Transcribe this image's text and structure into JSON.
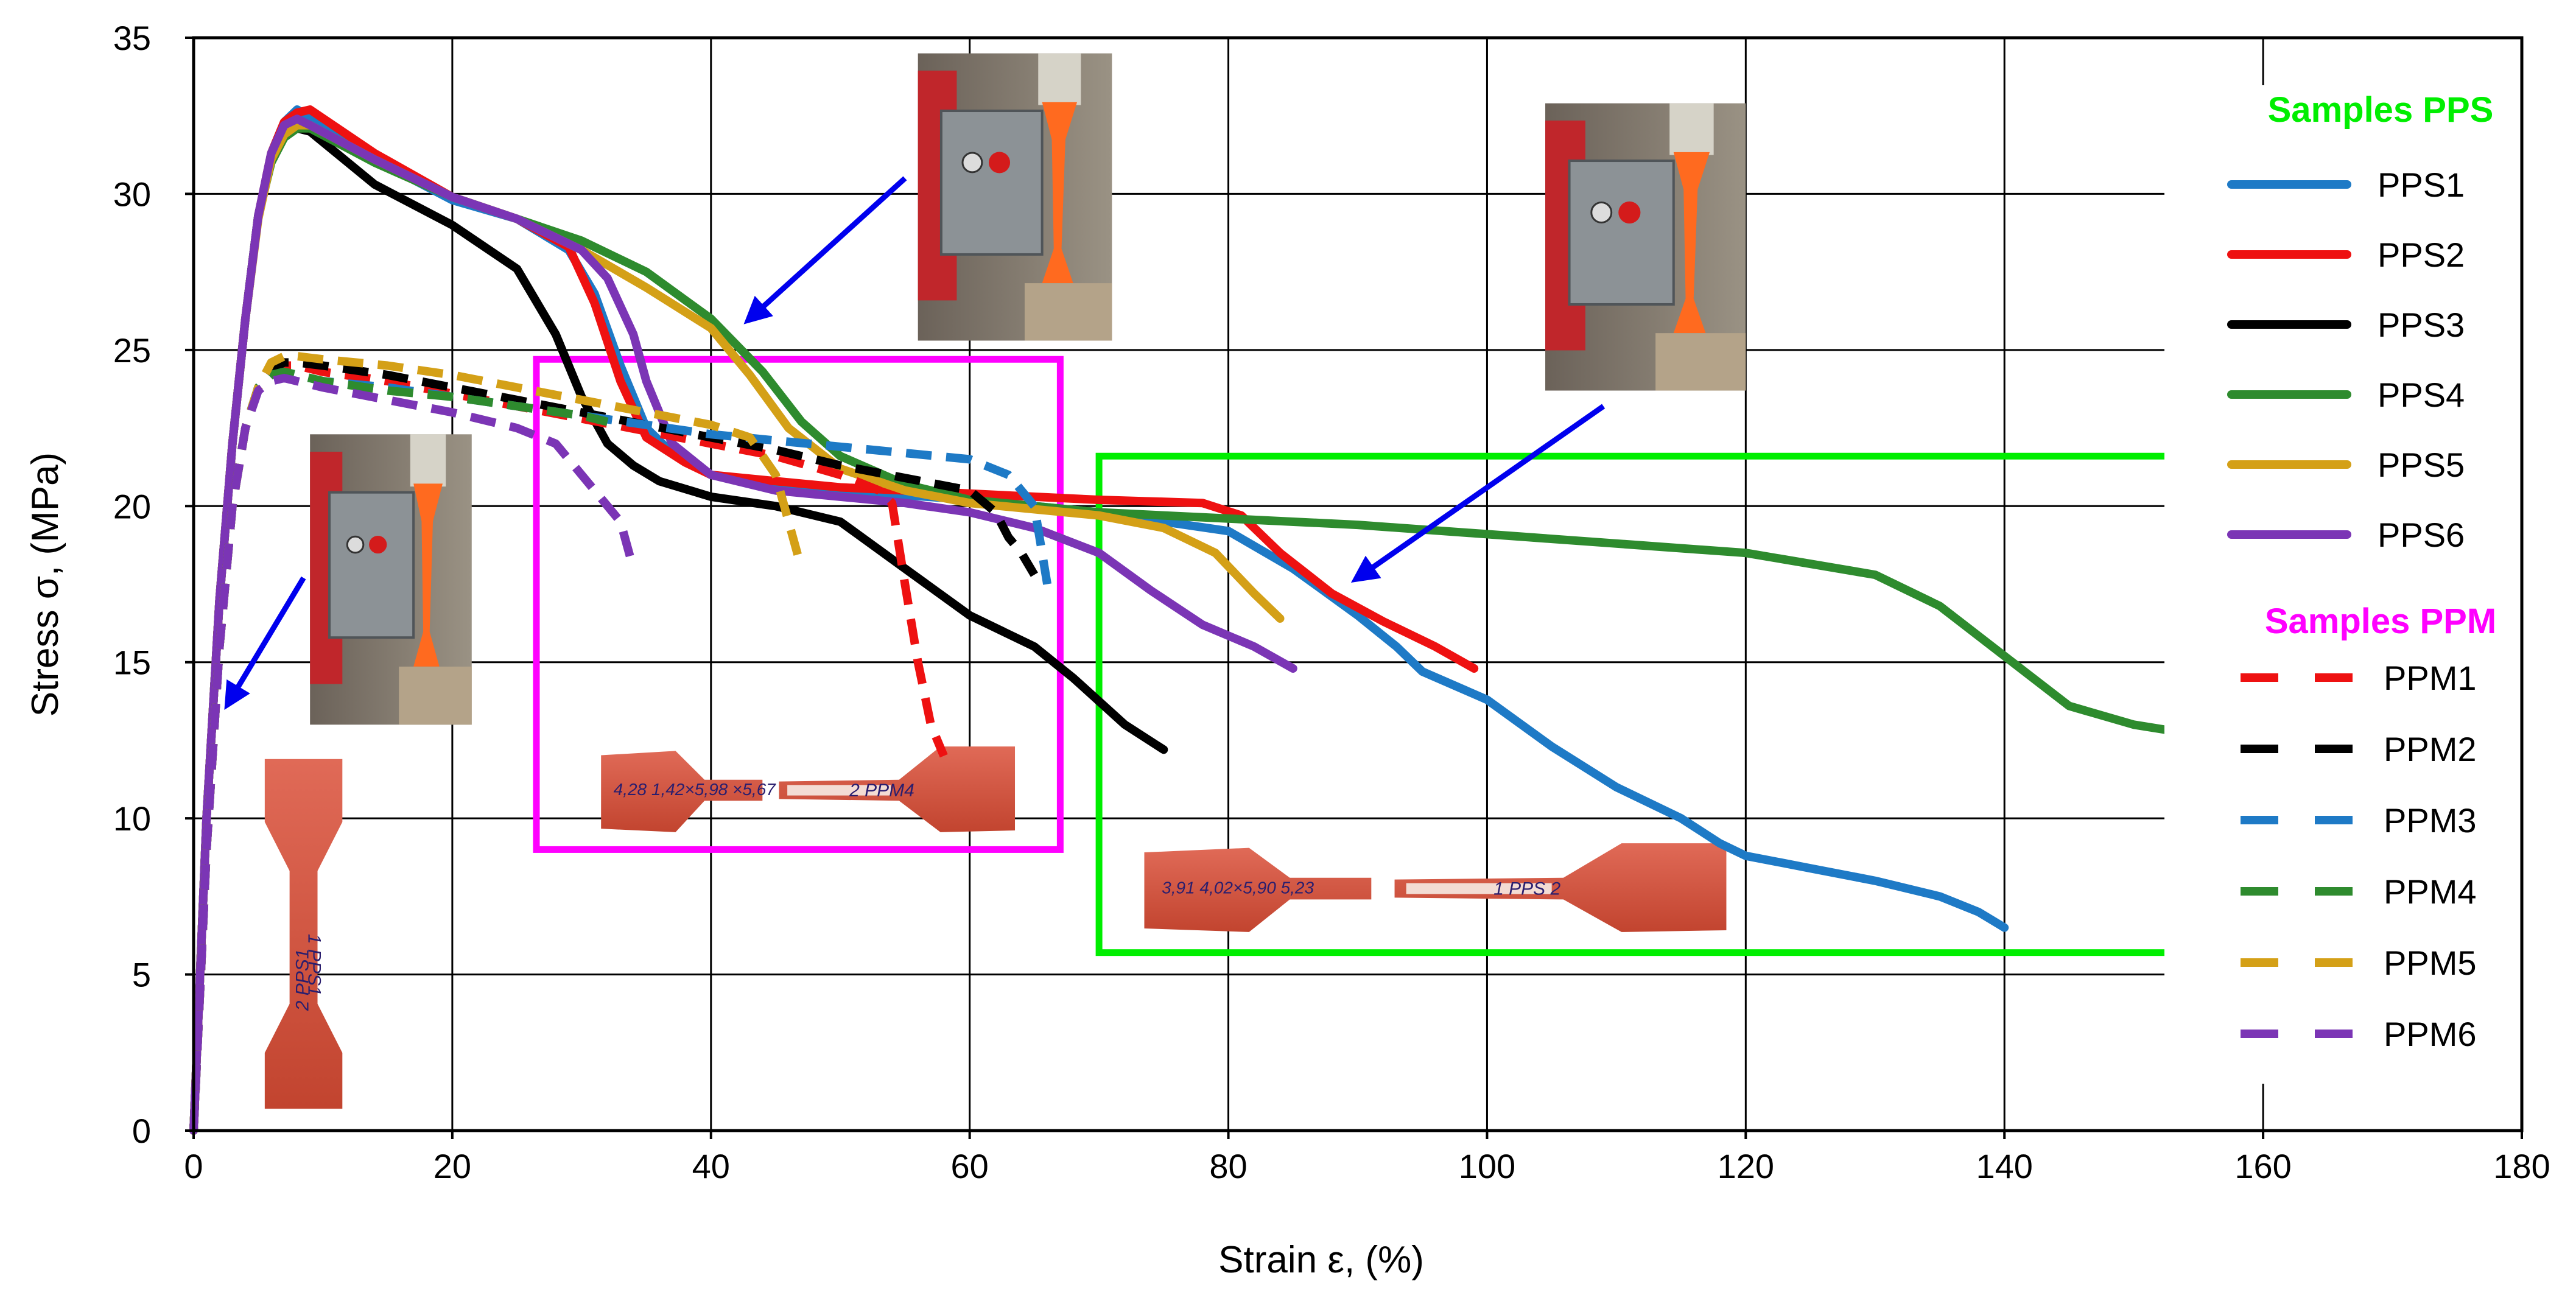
{
  "chart_data": {
    "type": "line",
    "title": "",
    "xlabel": "Strain ε, (%)",
    "ylabel": "Stress σ, (MPa)",
    "xlim": [
      0,
      180
    ],
    "ylim": [
      0,
      35
    ],
    "xticks": [
      "0",
      "20",
      "40",
      "60",
      "80",
      "100",
      "120",
      "140",
      "160",
      "180"
    ],
    "yticks": [
      "0",
      "5",
      "10",
      "15",
      "20",
      "25",
      "30",
      "35"
    ],
    "grid": true,
    "legend_placement": "right",
    "legend_groups": [
      {
        "title": "Samples PPS",
        "color": "#00ee00"
      },
      {
        "title": "Samples PPM",
        "color": "#ff00ff"
      }
    ],
    "series": [
      {
        "name": "PPS1",
        "group": "PPS",
        "style": "solid",
        "color": "#1e7ac6",
        "x": [
          0,
          1,
          2,
          3,
          4,
          5,
          6,
          7,
          8,
          10,
          14,
          20,
          25,
          29,
          31,
          33,
          35,
          37,
          40,
          50,
          60,
          70,
          80,
          85,
          90,
          93,
          95,
          100,
          105,
          110,
          115,
          118,
          120,
          125,
          130,
          135,
          138,
          140
        ],
        "y": [
          0,
          10,
          17,
          22,
          26,
          29.3,
          31.3,
          32.3,
          32.7,
          32.2,
          31.1,
          29.8,
          29.2,
          28.2,
          26.8,
          24.5,
          22.5,
          21.7,
          21,
          20.5,
          20.2,
          19.8,
          19.2,
          18,
          16.5,
          15.5,
          14.7,
          13.8,
          12.3,
          11,
          10,
          9.2,
          8.8,
          8.4,
          8,
          7.5,
          7,
          6.5
        ]
      },
      {
        "name": "PPS2",
        "group": "PPS",
        "style": "solid",
        "color": "#ee1111",
        "x": [
          0,
          1,
          2,
          3,
          4,
          5,
          6,
          7,
          8,
          9,
          14,
          20,
          25,
          29,
          31,
          33,
          35,
          38,
          40,
          45,
          50,
          60,
          70,
          78,
          81,
          84,
          88,
          92,
          96,
          99
        ],
        "y": [
          0,
          10,
          17,
          22,
          26,
          29.3,
          31.3,
          32.3,
          32.6,
          32.7,
          31.3,
          29.9,
          29.2,
          28.3,
          26.5,
          24,
          22.2,
          21.4,
          21,
          20.8,
          20.6,
          20.4,
          20.2,
          20.1,
          19.7,
          18.5,
          17.2,
          16.3,
          15.5,
          14.8
        ]
      },
      {
        "name": "PPS3",
        "group": "PPS",
        "style": "solid",
        "color": "#000000",
        "x": [
          0,
          1,
          2,
          3,
          4,
          5,
          6,
          7,
          8,
          9,
          14,
          20,
          25,
          28,
          30,
          32,
          34,
          36,
          40,
          45,
          50,
          55,
          60,
          65,
          68,
          72,
          75
        ],
        "y": [
          0,
          10,
          17,
          22,
          26,
          29.3,
          31.1,
          31.9,
          32.1,
          32,
          30.3,
          29,
          27.6,
          25.5,
          23.5,
          22,
          21.3,
          20.8,
          20.3,
          20,
          19.5,
          18,
          16.5,
          15.5,
          14.5,
          13,
          12.2
        ]
      },
      {
        "name": "PPS4",
        "group": "PPS",
        "style": "solid",
        "color": "#2e8b2e",
        "x": [
          0,
          1,
          2,
          3,
          4,
          5,
          6,
          7,
          8,
          9,
          14,
          20,
          25,
          30,
          35,
          40,
          44,
          47,
          50,
          55,
          60,
          70,
          80,
          90,
          100,
          110,
          120,
          130,
          135,
          140,
          145,
          150,
          156
        ],
        "y": [
          0,
          10,
          17,
          22,
          26,
          29.3,
          31,
          31.8,
          32.1,
          32.1,
          31,
          29.9,
          29.2,
          28.5,
          27.5,
          26,
          24.3,
          22.7,
          21.6,
          20.7,
          20.2,
          19.8,
          19.6,
          19.4,
          19.1,
          18.8,
          18.5,
          17.8,
          16.8,
          15.2,
          13.6,
          13,
          12.6
        ]
      },
      {
        "name": "PPS5",
        "group": "PPS",
        "style": "solid",
        "color": "#d4a017",
        "x": [
          0,
          1,
          2,
          3,
          4,
          5,
          6,
          7,
          8,
          9,
          14,
          20,
          25,
          30,
          35,
          40,
          43,
          46,
          50,
          55,
          60,
          70,
          75,
          79,
          82,
          84
        ],
        "y": [
          0,
          10,
          17,
          22,
          26,
          29.2,
          31.1,
          31.9,
          32.2,
          32.2,
          31.1,
          29.9,
          29.2,
          28.2,
          27,
          25.7,
          24.2,
          22.5,
          21.2,
          20.5,
          20.1,
          19.7,
          19.3,
          18.5,
          17.2,
          16.4
        ]
      },
      {
        "name": "PPS6",
        "group": "PPS",
        "style": "solid",
        "color": "#7b35b5",
        "x": [
          0,
          1,
          2,
          3,
          4,
          5,
          6,
          7,
          8,
          9,
          14,
          20,
          25,
          30,
          32,
          34,
          35,
          37,
          40,
          45,
          50,
          55,
          60,
          65,
          70,
          74,
          78,
          82,
          85
        ],
        "y": [
          0,
          10,
          17,
          22,
          26,
          29.3,
          31.3,
          32.2,
          32.4,
          32.2,
          31.1,
          29.9,
          29.2,
          28.2,
          27.3,
          25.5,
          24,
          22,
          21,
          20.5,
          20.3,
          20.1,
          19.8,
          19.3,
          18.5,
          17.3,
          16.2,
          15.5,
          14.8
        ]
      },
      {
        "name": "PPM1",
        "group": "PPM",
        "style": "dashed",
        "color": "#ee1111",
        "x": [
          0,
          1,
          2,
          3,
          4,
          5,
          6,
          7,
          8,
          10,
          15,
          20,
          25,
          30,
          35,
          40,
          45,
          50,
          53,
          54,
          55,
          56,
          57,
          58
        ],
        "y": [
          0,
          9,
          15.5,
          20,
          22.5,
          23.8,
          24.3,
          24.5,
          24.5,
          24.3,
          24,
          23.6,
          23.2,
          22.8,
          22.4,
          22,
          21.6,
          21,
          20.5,
          20.1,
          17.5,
          15,
          13,
          12
        ]
      },
      {
        "name": "PPM2",
        "group": "PPM",
        "style": "dashed",
        "color": "#000000",
        "x": [
          0,
          1,
          2,
          3,
          4,
          5,
          6,
          7,
          8,
          10,
          15,
          20,
          25,
          30,
          35,
          40,
          45,
          50,
          55,
          60,
          62,
          63,
          64,
          65
        ],
        "y": [
          0,
          9,
          15.5,
          20,
          22.5,
          23.8,
          24.4,
          24.6,
          24.6,
          24.5,
          24.2,
          23.8,
          23.4,
          23,
          22.6,
          22.2,
          21.8,
          21.3,
          20.9,
          20.5,
          19.8,
          19,
          18.5,
          17.8
        ]
      },
      {
        "name": "PPM3",
        "group": "PPM",
        "style": "dashed",
        "color": "#1e7ac6",
        "x": [
          0,
          1,
          2,
          3,
          4,
          5,
          6,
          7,
          8,
          10,
          15,
          20,
          25,
          30,
          35,
          40,
          45,
          50,
          55,
          60,
          63,
          65,
          66
        ],
        "y": [
          0,
          9,
          15.5,
          20,
          22.5,
          23.8,
          24.2,
          24.3,
          24.2,
          24,
          23.8,
          23.5,
          23.2,
          22.9,
          22.6,
          22.3,
          22.1,
          21.9,
          21.7,
          21.5,
          21,
          20,
          17.5
        ]
      },
      {
        "name": "PPM4",
        "group": "PPM",
        "style": "dashed",
        "color": "#2e8b2e",
        "x": [
          0,
          1,
          2,
          3,
          4,
          5,
          6,
          7,
          8,
          10,
          15,
          20,
          25,
          30,
          32
        ],
        "y": [
          0,
          9,
          15.5,
          20,
          22.5,
          23.8,
          24.2,
          24.3,
          24.2,
          24,
          23.7,
          23.5,
          23.2,
          22.9,
          22.7
        ]
      },
      {
        "name": "PPM5",
        "group": "PPM",
        "style": "dashed",
        "color": "#d4a017",
        "x": [
          0,
          1,
          2,
          3,
          4,
          5,
          6,
          7,
          8,
          10,
          15,
          20,
          25,
          30,
          35,
          40,
          43,
          45,
          46,
          47
        ],
        "y": [
          0,
          9,
          15.5,
          20,
          22.5,
          23.8,
          24.6,
          24.8,
          24.8,
          24.7,
          24.5,
          24.2,
          23.8,
          23.4,
          23,
          22.6,
          22.2,
          21,
          19.5,
          18
        ]
      },
      {
        "name": "PPM6",
        "group": "PPM",
        "style": "dashed",
        "color": "#7b35b5",
        "x": [
          0,
          1,
          2,
          3,
          4,
          5,
          6,
          7,
          8,
          10,
          15,
          20,
          25,
          28,
          31,
          33,
          34
        ],
        "y": [
          0,
          9,
          15.5,
          20,
          22.5,
          23.7,
          24,
          24.1,
          24,
          23.8,
          23.4,
          23,
          22.5,
          22,
          20.5,
          19.5,
          18
        ]
      }
    ],
    "highlight_boxes": [
      {
        "name": "ppm-region-box",
        "color": "#ff00ff",
        "x": [
          26.5,
          67
        ],
        "y": [
          9,
          24.7
        ]
      },
      {
        "name": "pps-region-box",
        "color": "#00ee00",
        "x": [
          70,
          157
        ],
        "y": [
          5.7,
          21.6
        ]
      }
    ],
    "arrows": [
      {
        "name": "arrow-peak-photo",
        "color": "#0000ee",
        "from": [
          8.5,
          17.7
        ],
        "to": [
          2.7,
          13.7
        ]
      },
      {
        "name": "arrow-necking-photo",
        "color": "#0000ee",
        "from": [
          55,
          30.5
        ],
        "to": [
          43,
          26
        ]
      },
      {
        "name": "arrow-break-photo",
        "color": "#0000ee",
        "from": [
          109,
          23.2
        ],
        "to": [
          90,
          17.7
        ]
      }
    ],
    "photos": [
      {
        "name": "photo-tensile-test-peak",
        "x": [
          9,
          21.5
        ],
        "y": [
          13,
          22.3
        ]
      },
      {
        "name": "photo-tensile-test-necking",
        "x": [
          56,
          71
        ],
        "y": [
          25.3,
          34.5
        ]
      },
      {
        "name": "photo-tensile-test-break",
        "x": [
          104.5,
          120
        ],
        "y": [
          23.7,
          32.9
        ]
      },
      {
        "name": "photo-specimen-vertical",
        "x": [
          5.5,
          11.5
        ],
        "y": [
          0.7,
          11.9
        ],
        "text": "1 PPS1",
        "text2": "2 PPS1"
      },
      {
        "name": "photo-specimen-ppm",
        "x": [
          31.5,
          63.5
        ],
        "y": [
          9.5,
          12.3
        ],
        "text": "4,28  1,42×5,98  ×5,67",
        "text2": "2 PPM4"
      },
      {
        "name": "photo-specimen-pps",
        "x": [
          73.5,
          118.5
        ],
        "y": [
          6.3,
          9.2
        ],
        "text": "3,91  4,02×5,90  5,23",
        "text2": "1 PPS 2"
      }
    ]
  }
}
